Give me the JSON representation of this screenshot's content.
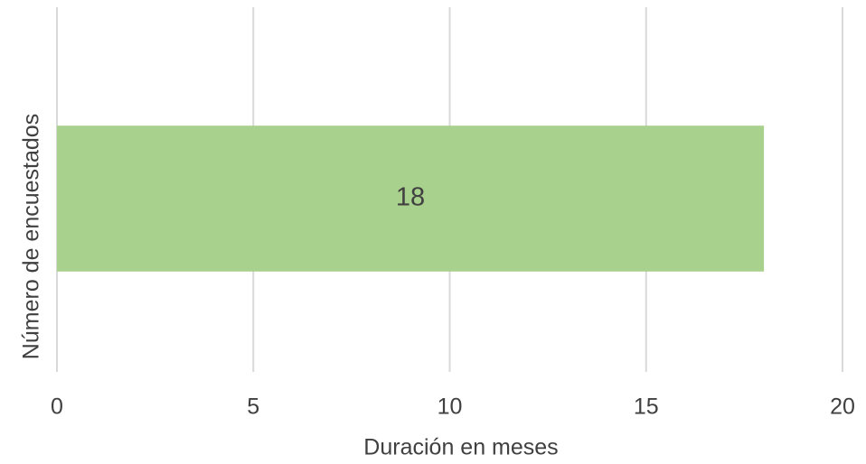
{
  "chart_data": {
    "type": "bar",
    "orientation": "horizontal",
    "x_label": "Duración en meses",
    "y_label": "Número de encuestados",
    "categories": [
      null
    ],
    "values": [
      18
    ],
    "color": "#a9d18e",
    "xlim": [
      0,
      20
    ],
    "xticks": [
      0,
      5,
      10,
      15,
      20
    ],
    "grid": true
  }
}
